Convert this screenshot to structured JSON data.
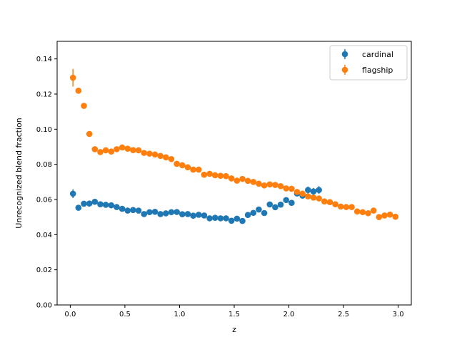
{
  "chart_data": {
    "type": "scatter",
    "title": "",
    "xlabel": "z",
    "ylabel": "Unrecognized blend fraction",
    "xlim": [
      -0.12,
      3.12
    ],
    "ylim": [
      0.0,
      0.15
    ],
    "x_ticks": [
      "0.0",
      "0.5",
      "1.0",
      "1.5",
      "2.0",
      "2.5",
      "3.0"
    ],
    "y_ticks": [
      "0.00",
      "0.02",
      "0.04",
      "0.06",
      "0.08",
      "0.10",
      "0.12",
      "0.14"
    ],
    "grid": false,
    "legend": "top-right",
    "error_bars": true,
    "series": [
      {
        "name": "cardinal",
        "color": "#1f77b4",
        "x": [
          0.025,
          0.075,
          0.125,
          0.175,
          0.225,
          0.275,
          0.325,
          0.375,
          0.425,
          0.475,
          0.525,
          0.575,
          0.625,
          0.675,
          0.725,
          0.775,
          0.825,
          0.875,
          0.925,
          0.975,
          1.025,
          1.075,
          1.125,
          1.175,
          1.225,
          1.275,
          1.325,
          1.375,
          1.425,
          1.475,
          1.525,
          1.575,
          1.625,
          1.675,
          1.725,
          1.775,
          1.825,
          1.875,
          1.925,
          1.975,
          2.025,
          2.075,
          2.125,
          2.175,
          2.225,
          2.275
        ],
        "y": [
          0.0633,
          0.0553,
          0.0576,
          0.0577,
          0.0587,
          0.0573,
          0.057,
          0.0567,
          0.0557,
          0.0547,
          0.0537,
          0.054,
          0.0537,
          0.0517,
          0.0528,
          0.053,
          0.0517,
          0.0521,
          0.0528,
          0.0529,
          0.0516,
          0.0517,
          0.0508,
          0.0513,
          0.0509,
          0.0493,
          0.0496,
          0.0493,
          0.0493,
          0.0479,
          0.0491,
          0.0478,
          0.0512,
          0.0524,
          0.0543,
          0.0523,
          0.0572,
          0.0556,
          0.0571,
          0.0597,
          0.0581,
          0.0634,
          0.0622,
          0.0654,
          0.0646,
          0.0654
        ],
        "err": [
          0.0025,
          0.0012,
          0.001,
          0.001,
          0.001,
          0.001,
          0.001,
          0.001,
          0.001,
          0.001,
          0.001,
          0.001,
          0.001,
          0.001,
          0.001,
          0.001,
          0.001,
          0.001,
          0.001,
          0.001,
          0.001,
          0.001,
          0.001,
          0.001,
          0.001,
          0.001,
          0.001,
          0.001,
          0.001,
          0.001,
          0.001,
          0.001,
          0.001,
          0.001,
          0.001,
          0.001,
          0.0012,
          0.0012,
          0.0012,
          0.0012,
          0.0014,
          0.0016,
          0.0016,
          0.002,
          0.002,
          0.0022
        ]
      },
      {
        "name": "flagship",
        "color": "#ff7f0e",
        "x": [
          0.025,
          0.075,
          0.125,
          0.175,
          0.225,
          0.275,
          0.325,
          0.375,
          0.425,
          0.475,
          0.525,
          0.575,
          0.625,
          0.675,
          0.725,
          0.775,
          0.825,
          0.875,
          0.925,
          0.975,
          1.025,
          1.075,
          1.125,
          1.175,
          1.225,
          1.275,
          1.325,
          1.375,
          1.425,
          1.475,
          1.525,
          1.575,
          1.625,
          1.675,
          1.725,
          1.775,
          1.825,
          1.875,
          1.925,
          1.975,
          2.025,
          2.075,
          2.125,
          2.175,
          2.225,
          2.275,
          2.325,
          2.375,
          2.425,
          2.475,
          2.525,
          2.575,
          2.625,
          2.675,
          2.725,
          2.775,
          2.825,
          2.875,
          2.925,
          2.975
        ],
        "y": [
          0.1293,
          0.1219,
          0.1133,
          0.0973,
          0.0886,
          0.087,
          0.088,
          0.0873,
          0.0886,
          0.0896,
          0.0889,
          0.0881,
          0.088,
          0.0865,
          0.0861,
          0.0856,
          0.0848,
          0.084,
          0.083,
          0.0803,
          0.0795,
          0.0783,
          0.077,
          0.077,
          0.0741,
          0.0746,
          0.0738,
          0.0735,
          0.0733,
          0.072,
          0.0707,
          0.0717,
          0.0706,
          0.07,
          0.069,
          0.068,
          0.0686,
          0.0683,
          0.0676,
          0.0663,
          0.0661,
          0.0643,
          0.0633,
          0.0618,
          0.0611,
          0.0606,
          0.0589,
          0.0585,
          0.0573,
          0.056,
          0.0557,
          0.0557,
          0.0532,
          0.0528,
          0.0522,
          0.0537,
          0.05,
          0.0509,
          0.0514,
          0.0502
        ],
        "err": [
          0.005,
          0.0012,
          0.001,
          0.001,
          0.001,
          0.001,
          0.001,
          0.001,
          0.001,
          0.001,
          0.001,
          0.001,
          0.001,
          0.001,
          0.001,
          0.001,
          0.001,
          0.001,
          0.001,
          0.001,
          0.001,
          0.001,
          0.001,
          0.001,
          0.001,
          0.001,
          0.001,
          0.001,
          0.001,
          0.001,
          0.001,
          0.001,
          0.001,
          0.001,
          0.001,
          0.001,
          0.001,
          0.001,
          0.001,
          0.001,
          0.001,
          0.001,
          0.001,
          0.001,
          0.001,
          0.001,
          0.001,
          0.001,
          0.001,
          0.001,
          0.001,
          0.001,
          0.001,
          0.001,
          0.001,
          0.001,
          0.001,
          0.001,
          0.001,
          0.001
        ]
      }
    ]
  }
}
